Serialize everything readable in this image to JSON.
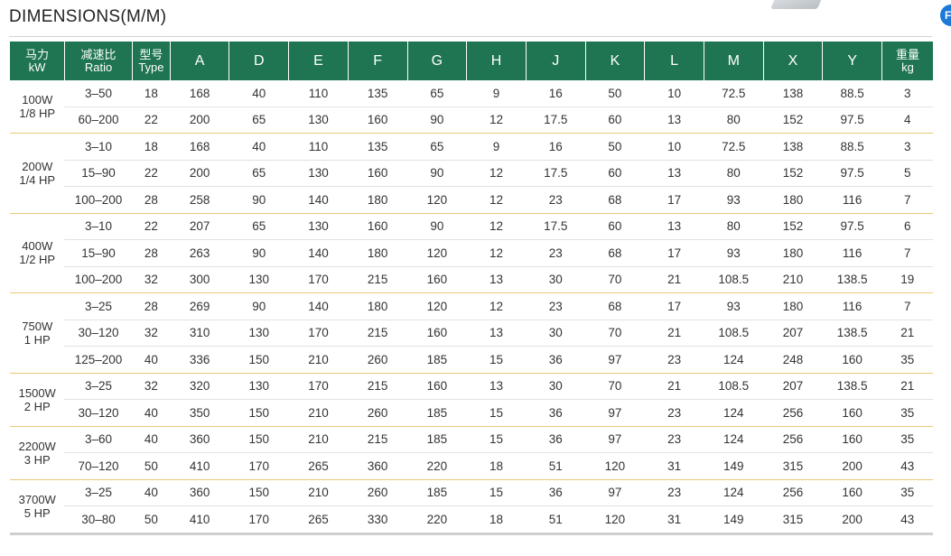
{
  "title": "DIMENSIONS(M/M)",
  "badge_text": "F",
  "headers": [
    {
      "l1": "马力",
      "l2": "kW"
    },
    {
      "l1": "减速比",
      "l2": "Ratio"
    },
    {
      "l1": "型号",
      "l2": "Type"
    },
    {
      "l1": "A"
    },
    {
      "l1": "D"
    },
    {
      "l1": "E"
    },
    {
      "l1": "F"
    },
    {
      "l1": "G"
    },
    {
      "l1": "H"
    },
    {
      "l1": "J"
    },
    {
      "l1": "K"
    },
    {
      "l1": "L"
    },
    {
      "l1": "M"
    },
    {
      "l1": "X"
    },
    {
      "l1": "Y"
    },
    {
      "l1": "重量",
      "l2": "kg"
    }
  ],
  "groups": [
    {
      "power": [
        "100W",
        "1/8 HP"
      ],
      "rows": [
        [
          "3–50",
          "18",
          "168",
          "40",
          "110",
          "135",
          "65",
          "9",
          "16",
          "50",
          "10",
          "72.5",
          "138",
          "88.5",
          "3"
        ],
        [
          "60–200",
          "22",
          "200",
          "65",
          "130",
          "160",
          "90",
          "12",
          "17.5",
          "60",
          "13",
          "80",
          "152",
          "97.5",
          "4"
        ]
      ]
    },
    {
      "power": [
        "200W",
        "1/4 HP"
      ],
      "rows": [
        [
          "3–10",
          "18",
          "168",
          "40",
          "110",
          "135",
          "65",
          "9",
          "16",
          "50",
          "10",
          "72.5",
          "138",
          "88.5",
          "3"
        ],
        [
          "15–90",
          "22",
          "200",
          "65",
          "130",
          "160",
          "90",
          "12",
          "17.5",
          "60",
          "13",
          "80",
          "152",
          "97.5",
          "5"
        ],
        [
          "100–200",
          "28",
          "258",
          "90",
          "140",
          "180",
          "120",
          "12",
          "23",
          "68",
          "17",
          "93",
          "180",
          "116",
          "7"
        ]
      ]
    },
    {
      "power": [
        "400W",
        "1/2 HP"
      ],
      "rows": [
        [
          "3–10",
          "22",
          "207",
          "65",
          "130",
          "160",
          "90",
          "12",
          "17.5",
          "60",
          "13",
          "80",
          "152",
          "97.5",
          "6"
        ],
        [
          "15–90",
          "28",
          "263",
          "90",
          "140",
          "180",
          "120",
          "12",
          "23",
          "68",
          "17",
          "93",
          "180",
          "116",
          "7"
        ],
        [
          "100–200",
          "32",
          "300",
          "130",
          "170",
          "215",
          "160",
          "13",
          "30",
          "70",
          "21",
          "108.5",
          "210",
          "138.5",
          "19"
        ]
      ]
    },
    {
      "power": [
        "750W",
        "1 HP"
      ],
      "rows": [
        [
          "3–25",
          "28",
          "269",
          "90",
          "140",
          "180",
          "120",
          "12",
          "23",
          "68",
          "17",
          "93",
          "180",
          "116",
          "7"
        ],
        [
          "30–120",
          "32",
          "310",
          "130",
          "170",
          "215",
          "160",
          "13",
          "30",
          "70",
          "21",
          "108.5",
          "207",
          "138.5",
          "21"
        ],
        [
          "125–200",
          "40",
          "336",
          "150",
          "210",
          "260",
          "185",
          "15",
          "36",
          "97",
          "23",
          "124",
          "248",
          "160",
          "35"
        ]
      ]
    },
    {
      "power": [
        "1500W",
        "2 HP"
      ],
      "rows": [
        [
          "3–25",
          "32",
          "320",
          "130",
          "170",
          "215",
          "160",
          "13",
          "30",
          "70",
          "21",
          "108.5",
          "207",
          "138.5",
          "21"
        ],
        [
          "30–120",
          "40",
          "350",
          "150",
          "210",
          "260",
          "185",
          "15",
          "36",
          "97",
          "23",
          "124",
          "256",
          "160",
          "35"
        ]
      ]
    },
    {
      "power": [
        "2200W",
        "3 HP"
      ],
      "rows": [
        [
          "3–60",
          "40",
          "360",
          "150",
          "210",
          "215",
          "185",
          "15",
          "36",
          "97",
          "23",
          "124",
          "256",
          "160",
          "35"
        ],
        [
          "70–120",
          "50",
          "410",
          "170",
          "265",
          "360",
          "220",
          "18",
          "51",
          "120",
          "31",
          "149",
          "315",
          "200",
          "43"
        ]
      ]
    },
    {
      "power": [
        "3700W",
        "5 HP"
      ],
      "rows": [
        [
          "3–25",
          "40",
          "360",
          "150",
          "210",
          "260",
          "185",
          "15",
          "36",
          "97",
          "23",
          "124",
          "256",
          "160",
          "35"
        ],
        [
          "30–80",
          "50",
          "410",
          "170",
          "265",
          "330",
          "220",
          "18",
          "51",
          "120",
          "31",
          "149",
          "315",
          "200",
          "43"
        ]
      ]
    }
  ]
}
